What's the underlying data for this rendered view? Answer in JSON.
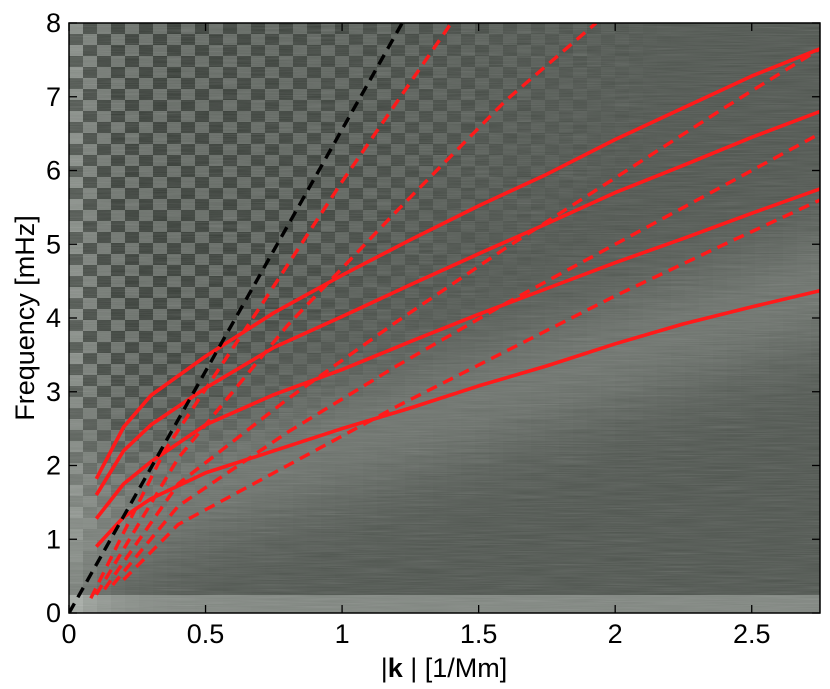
{
  "chart_data": {
    "type": "line",
    "background": "grayscale power spectrum (k-omega diagram) with checkerboard ridges",
    "xlabel_parts": [
      "|",
      "k",
      " |  [1/Mm]"
    ],
    "ylabel": "Frequency  [mHz]",
    "xlim": [
      0,
      2.75
    ],
    "ylim": [
      0,
      8
    ],
    "xticks": [
      0,
      0.5,
      1,
      1.5,
      2,
      2.5
    ],
    "xtick_labels": [
      "0",
      "0.5",
      "1",
      "1.5",
      "2",
      "2.5"
    ],
    "yticks": [
      0,
      1,
      2,
      3,
      4,
      5,
      6,
      7,
      8
    ],
    "ytick_labels": [
      "0",
      "1",
      "2",
      "3",
      "4",
      "5",
      "6",
      "7",
      "8"
    ],
    "grid": false,
    "colors": {
      "solid": "#ff1a1a",
      "dashed_red": "#ff1a1a",
      "dashed_black": "#000000"
    },
    "series": [
      {
        "style": "solid",
        "color": "#ff1a1a",
        "x": [
          0.1,
          0.2,
          0.3,
          0.5,
          0.75,
          1.0,
          1.25,
          1.5,
          1.75,
          2.0,
          2.25,
          2.5,
          2.75
        ],
        "y": [
          1.82,
          2.52,
          2.95,
          3.48,
          4.07,
          4.58,
          5.06,
          5.52,
          5.95,
          6.42,
          6.85,
          7.28,
          7.65
        ]
      },
      {
        "style": "solid",
        "color": "#ff1a1a",
        "x": [
          0.1,
          0.2,
          0.3,
          0.5,
          0.75,
          1.0,
          1.25,
          1.5,
          1.75,
          2.0,
          2.25,
          2.5,
          2.75
        ],
        "y": [
          1.6,
          2.2,
          2.55,
          3.05,
          3.6,
          4.02,
          4.45,
          4.87,
          5.28,
          5.7,
          6.07,
          6.45,
          6.8
        ]
      },
      {
        "style": "solid",
        "color": "#ff1a1a",
        "x": [
          0.1,
          0.2,
          0.3,
          0.5,
          0.75,
          1.0,
          1.25,
          1.5,
          1.75,
          2.0,
          2.25,
          2.5,
          2.75
        ],
        "y": [
          1.28,
          1.75,
          2.05,
          2.55,
          2.96,
          3.3,
          3.68,
          4.05,
          4.4,
          4.75,
          5.08,
          5.42,
          5.75
        ]
      },
      {
        "style": "solid",
        "color": "#ff1a1a",
        "x": [
          0.1,
          0.2,
          0.3,
          0.5,
          0.75,
          1.0,
          1.25,
          1.5,
          1.75,
          2.0,
          2.25,
          2.5,
          2.75
        ],
        "y": [
          0.9,
          1.3,
          1.55,
          1.9,
          2.2,
          2.5,
          2.78,
          3.08,
          3.35,
          3.65,
          3.92,
          4.15,
          4.37
        ]
      },
      {
        "style": "dashed",
        "color": "#000000",
        "x": [
          0,
          1.22
        ],
        "y": [
          0,
          8.0
        ]
      },
      {
        "style": "dashed",
        "color": "#ff1a1a",
        "x": [
          0.08,
          0.35,
          0.7,
          1.0,
          1.4
        ],
        "y": [
          0.2,
          2.2,
          4.15,
          5.85,
          8.0
        ]
      },
      {
        "style": "dashed",
        "color": "#ff1a1a",
        "x": [
          0.1,
          0.4,
          0.8,
          1.2,
          1.6,
          1.93
        ],
        "y": [
          0.25,
          2.1,
          3.9,
          5.45,
          6.95,
          8.0
        ]
      },
      {
        "style": "dashed",
        "color": "#ff1a1a",
        "x": [
          0.13,
          0.4,
          0.8,
          1.2,
          1.6,
          2.0,
          2.4,
          2.75
        ],
        "y": [
          0.32,
          1.75,
          2.9,
          3.95,
          4.95,
          5.9,
          6.85,
          7.65
        ]
      },
      {
        "style": "dashed",
        "color": "#ff1a1a",
        "x": [
          0.16,
          0.4,
          0.8,
          1.2,
          1.6,
          2.0,
          2.4,
          2.75
        ],
        "y": [
          0.38,
          1.45,
          2.45,
          3.35,
          4.2,
          5.0,
          5.8,
          6.5
        ]
      },
      {
        "style": "dashed",
        "color": "#ff1a1a",
        "x": [
          0.2,
          0.4,
          0.8,
          1.2,
          1.6,
          2.0,
          2.4,
          2.75
        ],
        "y": [
          0.45,
          1.2,
          2.0,
          2.8,
          3.55,
          4.3,
          5.0,
          5.6
        ]
      }
    ]
  }
}
